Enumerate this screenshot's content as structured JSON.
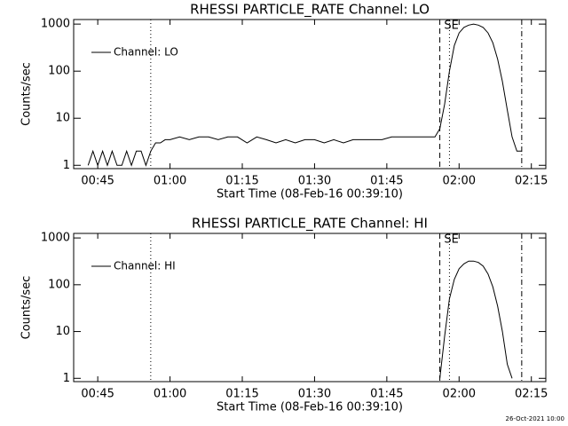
{
  "chart_data": [
    {
      "type": "line",
      "title": "RHESSI PARTICLE_RATE Channel: LO",
      "xlabel": "Start Time (08-Feb-16 00:39:10)",
      "ylabel": "Counts/sec",
      "log_y": true,
      "grid": false,
      "legend": "upper left",
      "xlim": [
        "00:40",
        "02:18"
      ],
      "xticks": [
        "00:45",
        "01:00",
        "01:15",
        "01:30",
        "01:45",
        "02:00",
        "02:15"
      ],
      "ylim": [
        0.85,
        1250
      ],
      "yticks": [
        1,
        10,
        100,
        1000
      ],
      "markers": [
        {
          "x": "00:56",
          "style": "dotted"
        },
        {
          "x": "01:56",
          "style": "dashed"
        },
        {
          "x": "01:58",
          "style": "dotted"
        },
        {
          "x": "02:13",
          "style": "dashdot"
        }
      ],
      "annotations": [
        {
          "text": "SE",
          "x": "01:58"
        }
      ],
      "x": [
        "00:43",
        "00:44",
        "00:45",
        "00:46",
        "00:47",
        "00:48",
        "00:49",
        "00:50",
        "00:51",
        "00:52",
        "00:53",
        "00:54",
        "00:55",
        "00:56",
        "00:57",
        "00:58",
        "00:59",
        "01:00",
        "01:02",
        "01:04",
        "01:06",
        "01:08",
        "01:10",
        "01:12",
        "01:14",
        "01:16",
        "01:18",
        "01:20",
        "01:22",
        "01:24",
        "01:26",
        "01:28",
        "01:30",
        "01:32",
        "01:34",
        "01:36",
        "01:38",
        "01:40",
        "01:42",
        "01:44",
        "01:46",
        "01:48",
        "01:50",
        "01:52",
        "01:54",
        "01:55",
        "01:56",
        "01:57",
        "01:58",
        "01:59",
        "02:00",
        "02:01",
        "02:02",
        "02:03",
        "02:04",
        "02:05",
        "02:06",
        "02:07",
        "02:08",
        "02:09",
        "02:10",
        "02:11",
        "02:12",
        "02:13"
      ],
      "series": [
        {
          "name": "Channel: LO",
          "color": "#000000",
          "values": [
            1,
            2,
            1,
            2,
            1,
            2,
            1,
            1,
            2,
            1,
            2,
            2,
            1,
            2,
            3,
            3,
            3.5,
            3.5,
            4,
            3.5,
            4,
            4,
            3.5,
            4,
            4,
            3,
            4,
            3.5,
            3,
            3.5,
            3,
            3.5,
            3.5,
            3,
            3.5,
            3,
            3.5,
            3.5,
            3.5,
            3.5,
            4,
            4,
            4,
            4,
            4,
            4,
            6,
            20,
            100,
            350,
            650,
            850,
            950,
            1000,
            950,
            850,
            650,
            400,
            180,
            60,
            15,
            4,
            2,
            2
          ]
        }
      ]
    },
    {
      "type": "line",
      "title": "RHESSI PARTICLE_RATE Channel: HI",
      "xlabel": "Start Time (08-Feb-16 00:39:10)",
      "ylabel": "Counts/sec",
      "log_y": true,
      "grid": false,
      "legend": "upper left",
      "xlim": [
        "00:40",
        "02:18"
      ],
      "xticks": [
        "00:45",
        "01:00",
        "01:15",
        "01:30",
        "01:45",
        "02:00",
        "02:15"
      ],
      "ylim": [
        0.85,
        1250
      ],
      "yticks": [
        1,
        10,
        100,
        1000
      ],
      "markers": [
        {
          "x": "00:56",
          "style": "dotted"
        },
        {
          "x": "01:56",
          "style": "dashed"
        },
        {
          "x": "01:58",
          "style": "dotted"
        },
        {
          "x": "02:13",
          "style": "dashdot"
        }
      ],
      "annotations": [
        {
          "text": "SE",
          "x": "01:58"
        }
      ],
      "x": [
        "01:56",
        "01:57",
        "01:58",
        "01:59",
        "02:00",
        "02:01",
        "02:02",
        "02:03",
        "02:04",
        "02:05",
        "02:06",
        "02:07",
        "02:08",
        "02:09",
        "02:10",
        "02:11"
      ],
      "series": [
        {
          "name": "Channel: HI",
          "color": "#000000",
          "values": [
            1,
            8,
            50,
            130,
            220,
            280,
            320,
            320,
            300,
            250,
            170,
            90,
            35,
            10,
            2,
            1
          ]
        }
      ]
    }
  ],
  "footer": "26-Oct-2021 10:00"
}
